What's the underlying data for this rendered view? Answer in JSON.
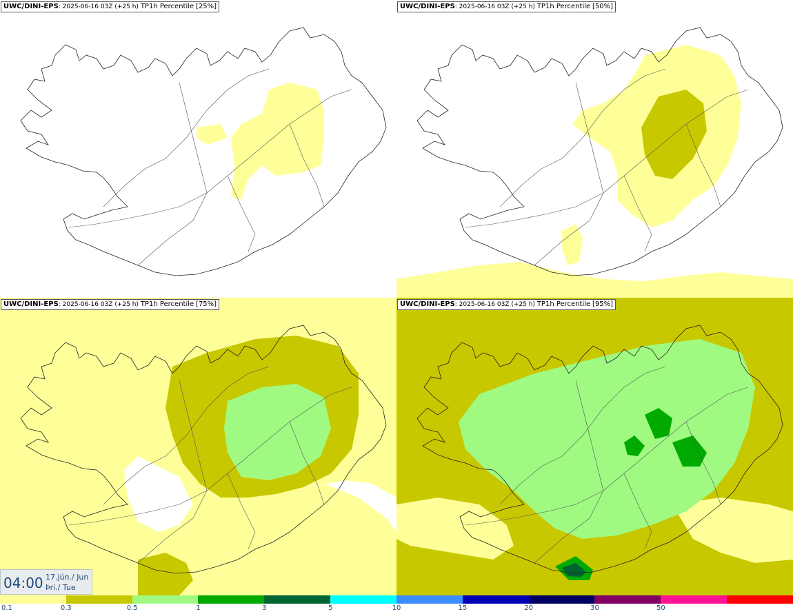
{
  "panels": [
    {
      "source": "UWC/DINI-EPS",
      "run": "2025-06-16 03Z",
      "lead": "(+25 h)",
      "variable": "TP1h Percentile",
      "percentile": "[25%]"
    },
    {
      "source": "UWC/DINI-EPS",
      "run": "2025-06-16 03Z",
      "lead": "(+25 h)",
      "variable": "TP1h Percentile",
      "percentile": "[50%]"
    },
    {
      "source": "UWC/DINI-EPS",
      "run": "2025-06-16 03Z",
      "lead": "(+25 h)",
      "variable": "TP1h Percentile",
      "percentile": "[75%]"
    },
    {
      "source": "UWC/DINI-EPS",
      "run": "2025-06-16 03Z",
      "lead": "(+25 h)",
      "variable": "TP1h Percentile",
      "percentile": "[95%]"
    }
  ],
  "valid_time": {
    "time": "04:00",
    "date_line": "17.jún./ Jun",
    "day_line": "Þri./ Tue"
  },
  "legend": {
    "colors": [
      "#ffff99",
      "#c8c800",
      "#a0fa82",
      "#00aa00",
      "#006432",
      "#00ffff",
      "#3c8cff",
      "#0000b4",
      "#000064",
      "#820064",
      "#ff1493",
      "#ff0000"
    ],
    "labels": [
      "0.1",
      "0.3",
      "0.5",
      "1",
      "3",
      "5",
      "10",
      "15",
      "20",
      "30",
      "50"
    ]
  }
}
